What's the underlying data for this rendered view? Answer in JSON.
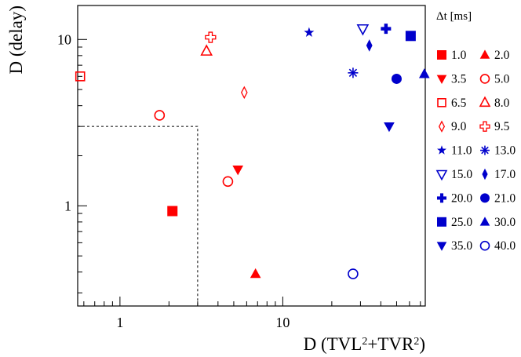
{
  "chart_data": {
    "type": "scatter",
    "title": "",
    "xlabel": "D (TVL²+TVR²)",
    "ylabel": "D (delay)",
    "x_scale": "log",
    "y_scale": "log",
    "xlim": [
      0.55,
      75
    ],
    "ylim": [
      0.25,
      16
    ],
    "x_ticks": [
      {
        "value": 1,
        "label": "1"
      },
      {
        "value": 10,
        "label": "10"
      }
    ],
    "y_ticks": [
      {
        "value": 1,
        "label": "1"
      },
      {
        "value": 10,
        "label": "10"
      }
    ],
    "grid": false,
    "legend_title": "Δt [ms]",
    "legend_placement": "right, outside plot",
    "cut_region": {
      "x_max": 3,
      "y_max": 3
    },
    "series": [
      {
        "name": "1.0",
        "color": "#ff0000",
        "marker": "square",
        "points": [
          [
            2.1,
            0.93
          ]
        ]
      },
      {
        "name": "2.0",
        "color": "#ff0000",
        "marker": "triangle-up",
        "points": [
          [
            6.8,
            0.39
          ]
        ]
      },
      {
        "name": "3.5",
        "color": "#ff0000",
        "marker": "triangle-down",
        "points": [
          [
            5.3,
            1.65
          ]
        ]
      },
      {
        "name": "5.0",
        "color": "#ff0000",
        "marker": "circle-open",
        "points": [
          [
            1.75,
            3.5
          ],
          [
            4.6,
            1.4
          ]
        ]
      },
      {
        "name": "6.5",
        "color": "#ff0000",
        "marker": "square-open",
        "points": [
          [
            0.57,
            6.0
          ]
        ]
      },
      {
        "name": "8.0",
        "color": "#ff0000",
        "marker": "triangle-open",
        "points": [
          [
            3.4,
            8.5
          ]
        ]
      },
      {
        "name": "9.0",
        "color": "#ff0000",
        "marker": "diamond-open",
        "points": [
          [
            5.8,
            4.8
          ]
        ]
      },
      {
        "name": "9.5",
        "color": "#ff0000",
        "marker": "cross-open",
        "points": [
          [
            3.6,
            10.3
          ]
        ]
      },
      {
        "name": "11.0",
        "color": "#0000cc",
        "marker": "star",
        "points": [
          [
            14.5,
            11.0
          ]
        ]
      },
      {
        "name": "13.0",
        "color": "#0000cc",
        "marker": "asterisk",
        "points": [
          [
            27,
            6.3
          ]
        ]
      },
      {
        "name": "15.0",
        "color": "#0000cc",
        "marker": "triangle-down-open",
        "points": [
          [
            31,
            11.6
          ]
        ]
      },
      {
        "name": "17.0",
        "color": "#0000cc",
        "marker": "diamond",
        "points": [
          [
            34,
            9.2
          ]
        ]
      },
      {
        "name": "20.0",
        "color": "#0000cc",
        "marker": "cross",
        "points": [
          [
            43,
            11.6
          ]
        ]
      },
      {
        "name": "21.0",
        "color": "#0000cc",
        "marker": "circle",
        "points": [
          [
            50,
            5.8
          ]
        ]
      },
      {
        "name": "25.0",
        "color": "#0000cc",
        "marker": "square",
        "points": [
          [
            61,
            10.5
          ]
        ]
      },
      {
        "name": "30.0",
        "color": "#0000cc",
        "marker": "triangle-up",
        "points": [
          [
            74,
            6.2
          ]
        ]
      },
      {
        "name": "35.0",
        "color": "#0000cc",
        "marker": "triangle-down",
        "points": [
          [
            45,
            3.0
          ]
        ]
      },
      {
        "name": "40.0",
        "color": "#0000cc",
        "marker": "circle-open",
        "points": [
          [
            27,
            0.39
          ]
        ]
      }
    ]
  }
}
